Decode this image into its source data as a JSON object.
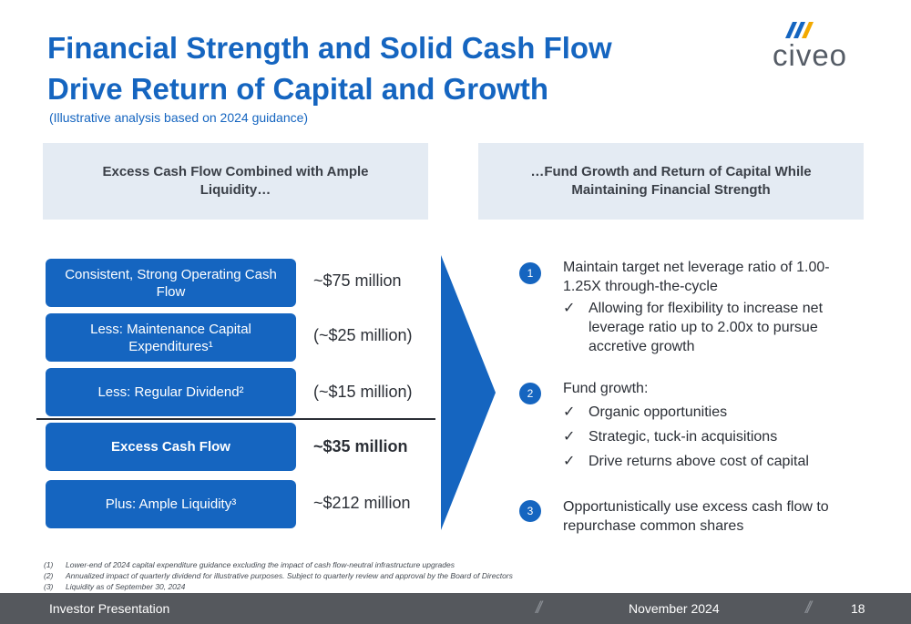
{
  "title": {
    "line1": "Financial Strength and Solid Cash Flow",
    "line2": "Drive Return of Capital and Growth",
    "subtitle": "(Illustrative analysis based on 2024 guidance)"
  },
  "logo": {
    "text": "civeo",
    "accent_color": "#1565c0",
    "secondary_color": "#f2a900"
  },
  "left_header": "Excess Cash Flow Combined with Ample Liquidity…",
  "right_header": "…Fund Growth and Return of Capital While Maintaining Financial Strength",
  "cash_items": [
    {
      "label": "Consistent, Strong Operating Cash Flow",
      "amount": "~$75 million",
      "bold": false
    },
    {
      "label": "Less: Maintenance Capital Expenditures¹",
      "amount": "(~$25 million)",
      "bold": false
    },
    {
      "label": "Less: Regular Dividend²",
      "amount": "(~$15 million)",
      "bold": false
    },
    {
      "label": "Excess Cash Flow",
      "amount": "~$35 million",
      "bold": true
    },
    {
      "label": "Plus: Ample Liquidity³",
      "amount": "~$212 million",
      "bold": false
    }
  ],
  "uses": [
    {
      "number": "1",
      "text": "Maintain target net leverage ratio of 1.00-1.25X through-the-cycle",
      "bullets": [
        "Allowing for flexibility to increase net leverage ratio up to 2.00x to pursue accretive growth"
      ]
    },
    {
      "number": "2",
      "text": "Fund growth:",
      "bullets": [
        "Organic opportunities",
        "Strategic, tuck-in acquisitions",
        "Drive returns above cost of capital"
      ]
    },
    {
      "number": "3",
      "text": "Opportunistically use excess cash flow to repurchase common shares",
      "bullets": []
    }
  ],
  "check_mark": "✓",
  "footnotes": [
    {
      "num": "(1)",
      "text": "Lower-end of 2024 capital expenditure guidance excluding the impact of cash flow-neutral infrastructure upgrades"
    },
    {
      "num": "(2)",
      "text": "Annualized impact of quarterly dividend for illustrative purposes. Subject to quarterly review and approval by the Board of Directors"
    },
    {
      "num": "(3)",
      "text": "Liquidity as of September 30, 2024"
    }
  ],
  "footer": {
    "left": "Investor Presentation",
    "date": "November 2024",
    "page": "18",
    "slash": "//"
  }
}
